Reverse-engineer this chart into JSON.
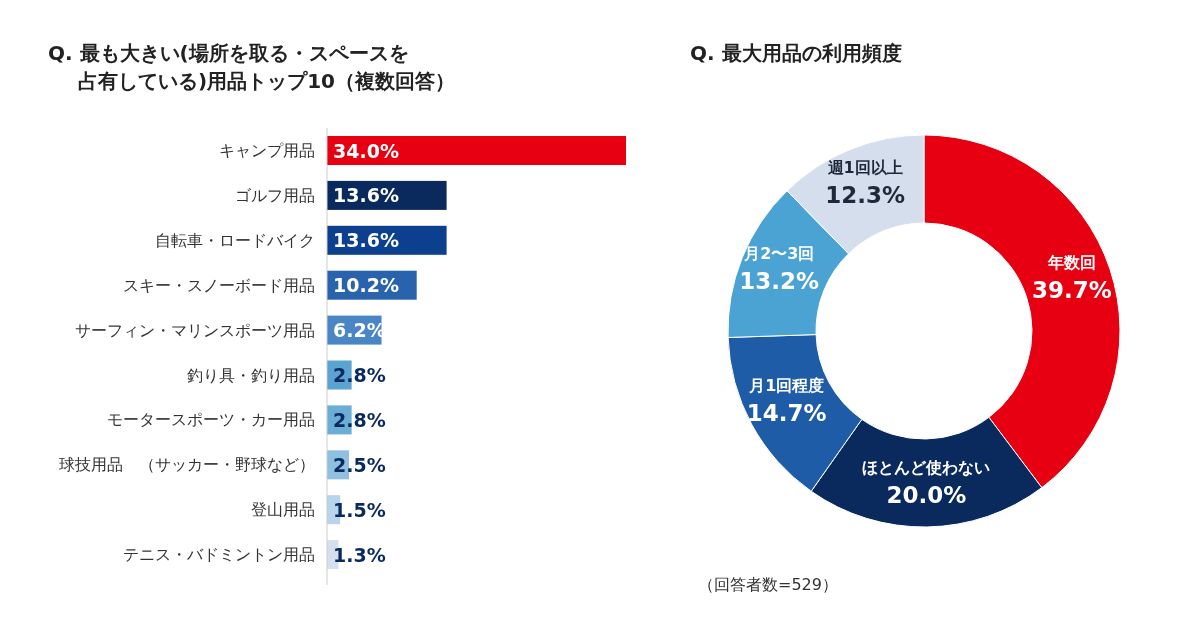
{
  "chart_data": [
    {
      "type": "bar",
      "orientation": "horizontal",
      "title": "Q. 最も大きい(場所を取る・スペースを占有している)用品トップ10（複数回答）",
      "categories": [
        "キャンプ用品",
        "ゴルフ用品",
        "自転車・ロードバイク",
        "スキー・スノーボード用品",
        "サーフィン・マリンスポーツ用品",
        "釣り具・釣り用品",
        "モータースポーツ・カー用品",
        "球技用品　（サッカー・野球など）",
        "登山用品",
        "テニス・バドミントン用品"
      ],
      "values": [
        34.0,
        13.6,
        13.6,
        10.2,
        6.2,
        2.8,
        2.8,
        2.5,
        1.5,
        1.3
      ],
      "colors": [
        "#e60012",
        "#0a2a5e",
        "#0d3f8f",
        "#2a63ad",
        "#4a86c5",
        "#5ba3d0",
        "#6aaed6",
        "#8fc0e0",
        "#b8d4ea",
        "#d4e0ee"
      ],
      "value_labels": [
        "34.0%",
        "13.6%",
        "13.6%",
        "10.2%",
        "6.2%",
        "2.8%",
        "2.8%",
        "2.5%",
        "1.5%",
        "1.3%"
      ]
    },
    {
      "type": "donut",
      "title": "Q. 最大用品の利用頻度",
      "categories": [
        "年数回",
        "ほとんど使わない",
        "月1回程度",
        "月2〜3回",
        "週1回以上"
      ],
      "values": [
        39.7,
        20.0,
        14.7,
        13.2,
        12.3
      ],
      "colors": [
        "#e60012",
        "#0a2a5e",
        "#1f5ca8",
        "#4aa3d3",
        "#d4deec"
      ],
      "value_labels": [
        "39.7%",
        "20.0%",
        "14.7%",
        "13.2%",
        "12.3%"
      ],
      "annotations": [
        "（回答者数=529）"
      ]
    }
  ]
}
